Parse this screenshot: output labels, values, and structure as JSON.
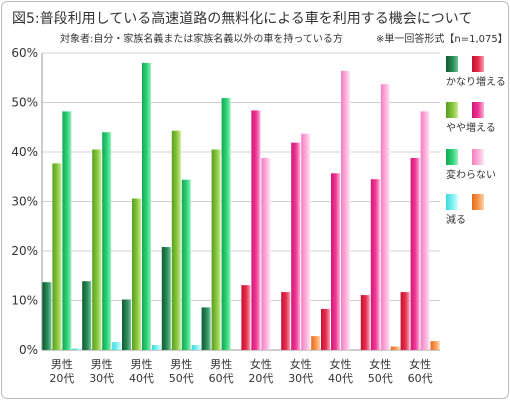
{
  "chart_data": {
    "type": "bar",
    "title": "図5:普段利用している高速道路の無料化による車を利用する機会について",
    "subtitle": "対象者:自分・家族名義または家族名義以外の車を持っている方",
    "note": "※単一回答形式【n=1,075】",
    "ylim": [
      0,
      60
    ],
    "yticks": [
      0,
      10,
      20,
      30,
      40,
      50,
      60
    ],
    "ytick_labels": [
      "0%",
      "10%",
      "20%",
      "30%",
      "40%",
      "50%",
      "60%"
    ],
    "categories": [
      [
        "男性",
        "20代"
      ],
      [
        "男性",
        "30代"
      ],
      [
        "男性",
        "40代"
      ],
      [
        "男性",
        "50代"
      ],
      [
        "男性",
        "60代"
      ],
      [
        "女性",
        "20代"
      ],
      [
        "女性",
        "30代"
      ],
      [
        "女性",
        "40代"
      ],
      [
        "女性",
        "50代"
      ],
      [
        "女性",
        "60代"
      ]
    ],
    "series": [
      {
        "name": "かなり増える",
        "values": [
          13.7,
          13.9,
          10.2,
          20.8,
          8.6,
          13.1,
          11.7,
          8.3,
          11.1,
          11.7
        ]
      },
      {
        "name": "やや増える",
        "values": [
          37.7,
          40.5,
          30.6,
          44.3,
          40.5,
          48.4,
          41.9,
          35.7,
          34.5,
          38.8
        ]
      },
      {
        "name": "変わらない",
        "values": [
          48.2,
          44.0,
          58.0,
          34.4,
          50.9,
          38.8,
          43.7,
          56.4,
          53.7,
          48.2
        ]
      },
      {
        "name": "減る",
        "values": [
          0.3,
          1.6,
          1.0,
          1.0,
          0.0,
          0.0,
          2.8,
          0.0,
          0.7,
          1.8
        ]
      }
    ],
    "colors": {
      "male": [
        "#1f7a4a",
        "#7cbf3a",
        "#22c06a",
        "#55e6e6"
      ],
      "female": [
        "#e01e45",
        "#ee2f8c",
        "#f79ad0",
        "#f58a3c"
      ]
    },
    "legend_placement": "right"
  }
}
